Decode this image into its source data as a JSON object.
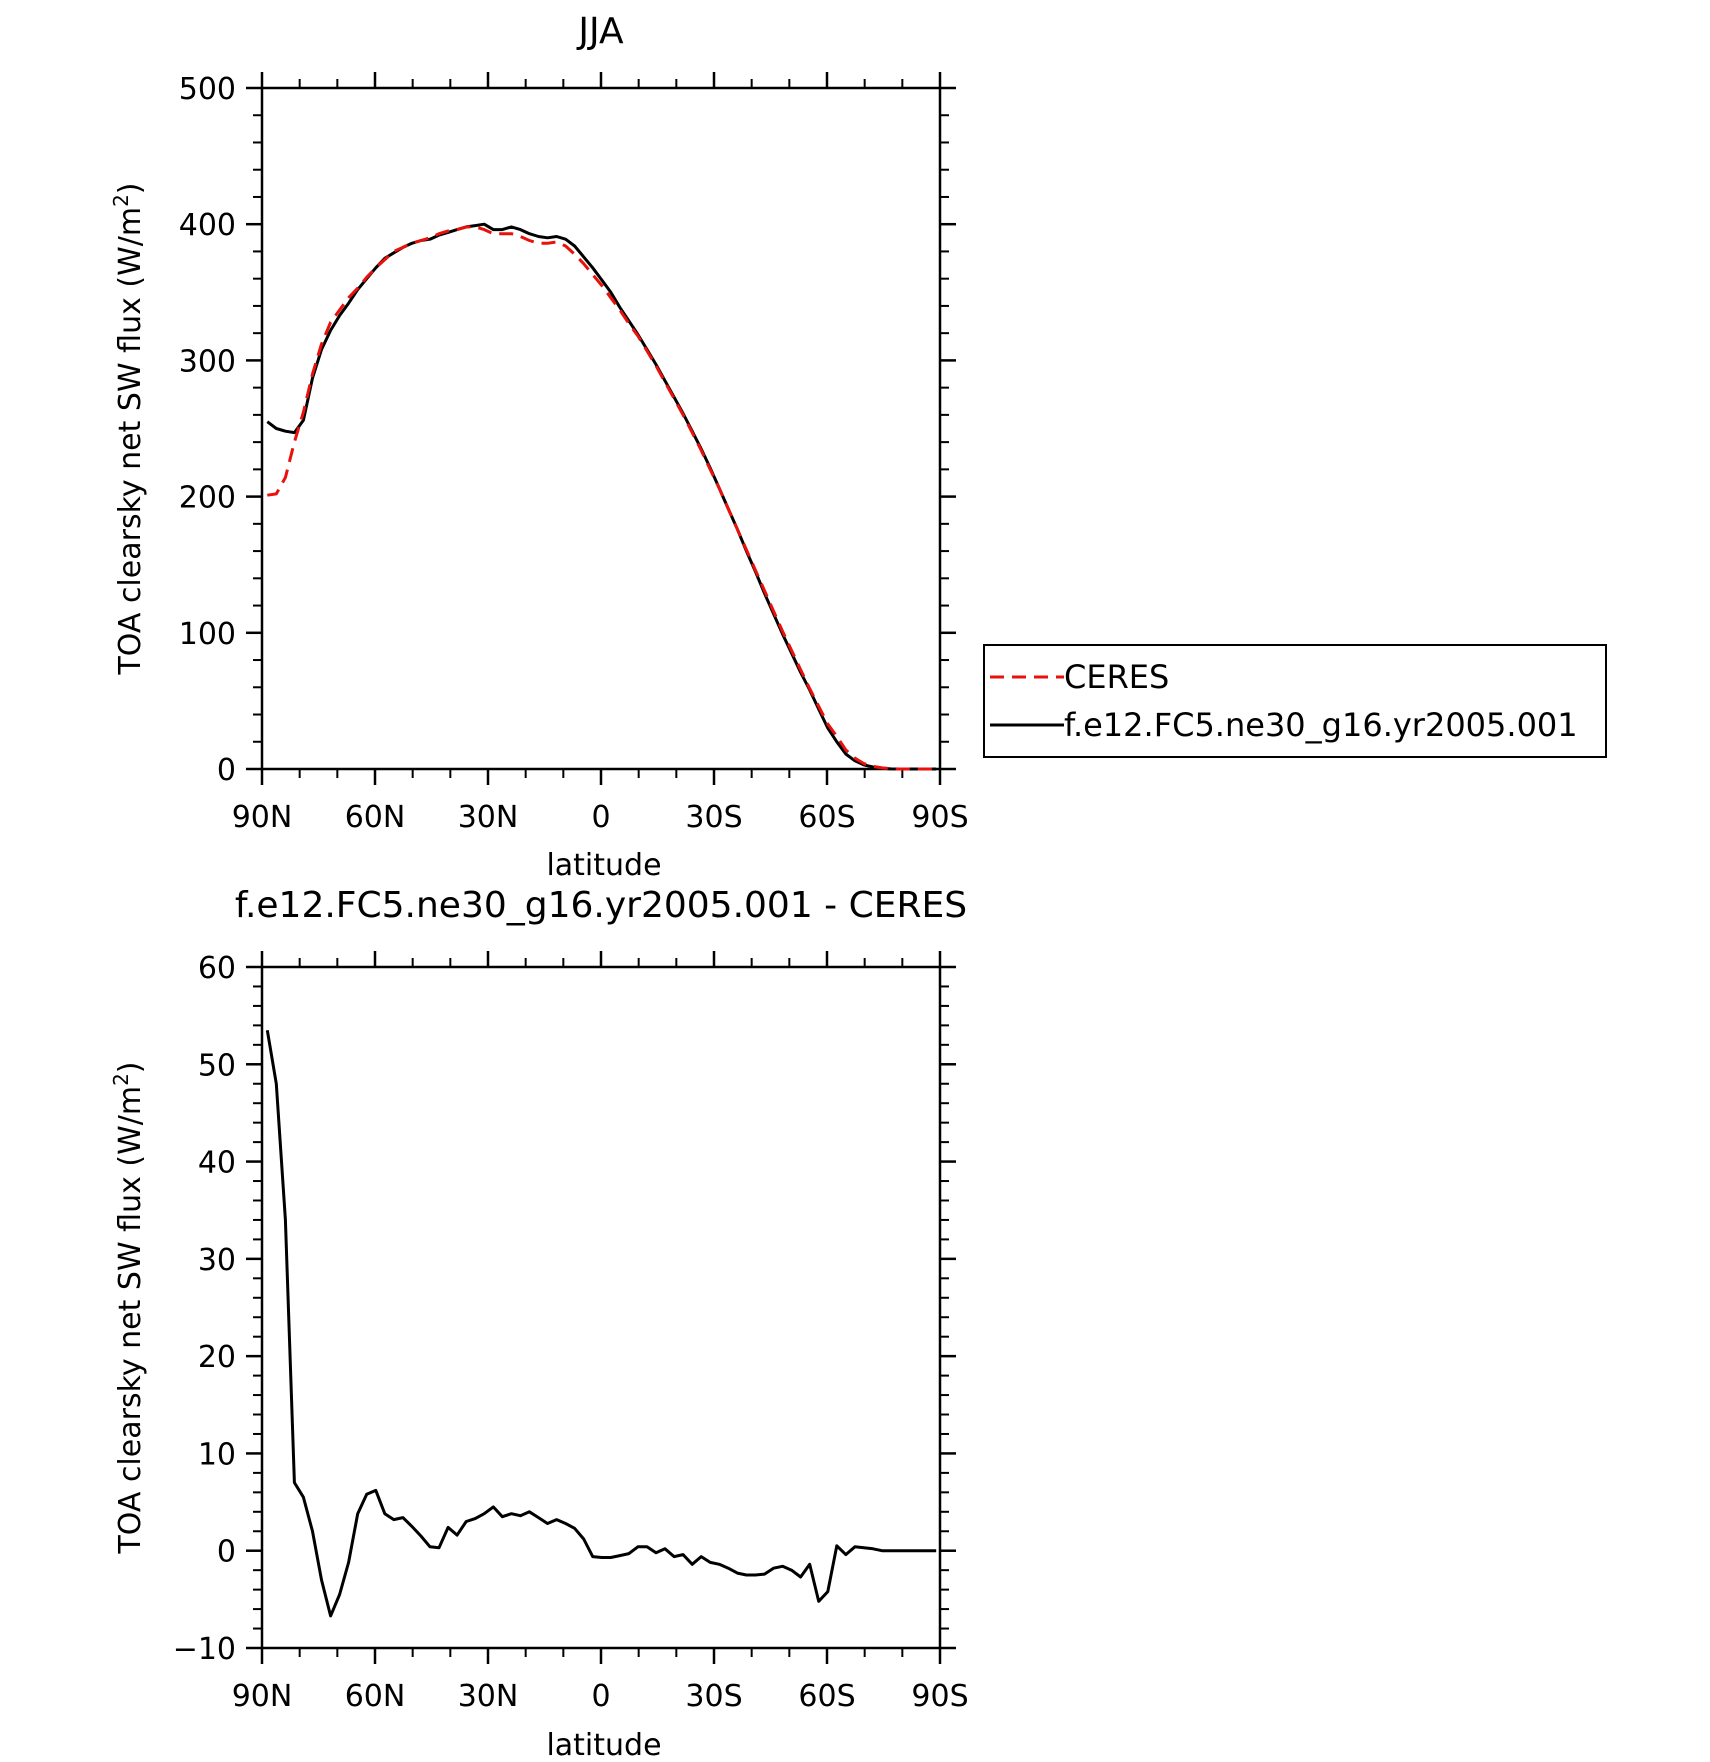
{
  "chart_data": [
    {
      "type": "line",
      "title": "JJA",
      "xlabel": "latitude",
      "ylabel_main": "TOA clearsky net SW flux (W/m",
      "ylabel_sup": "2",
      "ylabel_end": ")",
      "xlim": [
        90,
        -90
      ],
      "ylim": [
        0,
        500
      ],
      "xticks": [
        90,
        60,
        30,
        0,
        -30,
        -60,
        -90
      ],
      "xtick_labels": [
        "90N",
        "60N",
        "30N",
        "0",
        "30S",
        "60S",
        "90S"
      ],
      "yticks": [
        0,
        100,
        200,
        300,
        400,
        500
      ],
      "ytick_labels": [
        "0",
        "100",
        "200",
        "300",
        "400",
        "500"
      ],
      "legend_position": "right",
      "x": [
        88.6,
        86.2,
        83.8,
        81.4,
        79.0,
        76.6,
        74.2,
        71.8,
        69.4,
        67.0,
        64.6,
        62.2,
        59.8,
        57.4,
        55.0,
        52.6,
        50.2,
        47.8,
        45.4,
        43.0,
        40.6,
        38.2,
        35.8,
        33.4,
        31.0,
        28.6,
        26.2,
        23.8,
        21.4,
        19.0,
        16.6,
        14.2,
        11.8,
        9.4,
        7.0,
        4.6,
        2.2,
        -0.2,
        -2.6,
        -5.0,
        -7.4,
        -9.8,
        -12.2,
        -14.6,
        -17.0,
        -19.4,
        -21.8,
        -24.2,
        -26.6,
        -29.0,
        -31.4,
        -33.8,
        -36.2,
        -38.6,
        -41.0,
        -43.4,
        -45.8,
        -48.2,
        -50.6,
        -53.0,
        -55.4,
        -57.8,
        -60.2,
        -62.6,
        -65.0,
        -67.4,
        -69.8,
        -72.2,
        -74.6,
        -77.0,
        -79.4,
        -81.8,
        -84.2,
        -86.6,
        -89.0
      ],
      "series": [
        {
          "name": "CERES",
          "color": "#e8110c",
          "dash": true,
          "values": [
            201,
            202,
            214,
            240,
            262,
            290,
            312,
            328,
            337,
            346,
            353,
            361,
            368,
            374,
            380,
            383,
            386,
            388,
            390,
            393,
            395,
            396,
            398,
            398,
            396,
            393,
            393,
            393,
            391,
            388,
            386,
            386,
            387,
            384,
            378,
            371,
            363,
            355,
            346,
            337,
            327,
            318,
            307,
            296,
            284,
            272,
            260,
            247,
            234,
            220,
            206,
            191,
            176,
            161,
            146,
            131,
            116,
            101,
            87,
            73,
            59,
            46,
            33,
            24,
            14,
            8,
            4,
            2,
            0.8,
            0.2,
            0,
            0,
            0,
            0,
            0
          ]
        },
        {
          "name": "f.e12.FC5.ne30_g16.yr2005.001",
          "color": "#000000",
          "dash": false,
          "values": [
            255,
            250,
            248,
            247,
            256,
            287,
            308,
            322,
            333,
            342,
            352,
            360,
            368,
            375,
            379,
            383,
            386,
            388,
            389,
            392,
            394,
            396,
            398,
            399,
            400,
            396,
            396,
            398,
            396,
            393,
            391,
            390,
            391,
            389,
            384,
            376,
            368,
            359,
            350,
            339,
            329,
            319,
            308,
            297,
            285,
            273,
            261,
            248,
            235,
            221,
            206,
            191,
            176,
            160,
            145,
            129,
            114,
            99,
            85,
            71,
            58,
            44,
            30,
            20,
            11,
            6,
            3,
            1.5,
            0.5,
            0.1,
            0,
            0,
            0,
            0,
            0
          ]
        }
      ]
    },
    {
      "type": "line",
      "title": "f.e12.FC5.ne30_g16.yr2005.001 - CERES",
      "xlabel": "latitude",
      "ylabel_main": "TOA clearsky net SW flux (W/m",
      "ylabel_sup": "2",
      "ylabel_end": ")",
      "xlim": [
        90,
        -90
      ],
      "ylim": [
        -10,
        60
      ],
      "xticks": [
        90,
        60,
        30,
        0,
        -30,
        -60,
        -90
      ],
      "xtick_labels": [
        "90N",
        "60N",
        "30N",
        "0",
        "30S",
        "60S",
        "90S"
      ],
      "yticks": [
        -10,
        0,
        10,
        20,
        30,
        40,
        50,
        60
      ],
      "ytick_labels": [
        "−10",
        "0",
        "10",
        "20",
        "30",
        "40",
        "50",
        "60"
      ],
      "x": [
        88.6,
        86.2,
        83.8,
        81.4,
        79.0,
        76.6,
        74.2,
        71.8,
        69.4,
        67.0,
        64.6,
        62.2,
        59.8,
        57.4,
        55.0,
        52.6,
        50.2,
        47.8,
        45.4,
        43.0,
        40.6,
        38.2,
        35.8,
        33.4,
        31.0,
        28.6,
        26.2,
        23.8,
        21.4,
        19.0,
        16.6,
        14.2,
        11.8,
        9.4,
        7.0,
        4.6,
        2.2,
        -0.2,
        -2.6,
        -5.0,
        -7.4,
        -9.8,
        -12.2,
        -14.6,
        -17.0,
        -19.4,
        -21.8,
        -24.2,
        -26.6,
        -29.0,
        -31.4,
        -33.8,
        -36.2,
        -38.6,
        -41.0,
        -43.4,
        -45.8,
        -48.2,
        -50.6,
        -53.0,
        -55.4,
        -57.8,
        -60.2,
        -62.6,
        -65.0,
        -67.4,
        -69.8,
        -72.2,
        -74.6,
        -77.0,
        -79.4,
        -81.8,
        -84.2,
        -86.6,
        -89.0
      ],
      "series": [
        {
          "color": "#000000",
          "dash": false,
          "values": [
            53.5,
            48,
            34,
            7,
            5.5,
            2,
            -3,
            -6.7,
            -4.5,
            -1.2,
            3.8,
            5.8,
            6.2,
            3.8,
            3.2,
            3.4,
            2.5,
            1.5,
            0.4,
            0.3,
            2.4,
            1.6,
            3.0,
            3.3,
            3.8,
            4.5,
            3.5,
            3.8,
            3.6,
            4.0,
            3.4,
            2.8,
            3.2,
            2.8,
            2.3,
            1.2,
            -0.6,
            -0.7,
            -0.7,
            -0.5,
            -0.3,
            0.4,
            0.4,
            -0.2,
            0.2,
            -0.6,
            -0.4,
            -1.4,
            -0.6,
            -1.2,
            -1.4,
            -1.8,
            -2.3,
            -2.5,
            -2.5,
            -2.4,
            -1.8,
            -1.6,
            -2.0,
            -2.7,
            -1.4,
            -5.2,
            -4.2,
            0.5,
            -0.4,
            0.4,
            0.3,
            0.2,
            0.0,
            0.0,
            0.0,
            0.0,
            0.0,
            0.0,
            0.0
          ]
        }
      ]
    }
  ]
}
